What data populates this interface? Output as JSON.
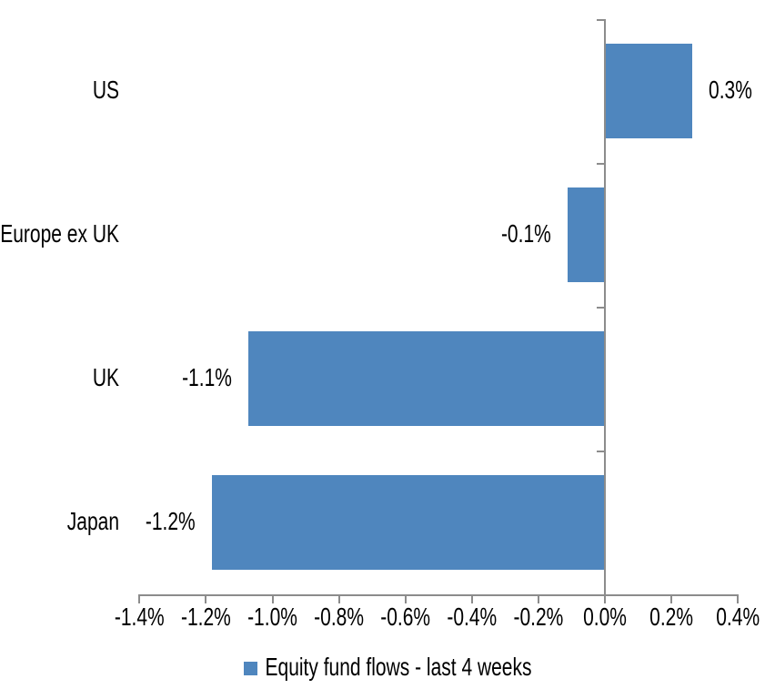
{
  "chart_data": {
    "type": "bar",
    "orientation": "horizontal",
    "title": "",
    "categories": [
      "US",
      "Europe ex UK",
      "UK",
      "Japan"
    ],
    "series": [
      {
        "name": "Equity fund flows - last 4 weeks",
        "values": [
          0.26,
          -0.11,
          -1.07,
          -1.18
        ],
        "data_labels": [
          "0.3%",
          "-0.1%",
          "-1.1%",
          "-1.2%"
        ]
      }
    ],
    "value_unit": "%",
    "xlim": [
      -1.4,
      0.4
    ],
    "x_tick_values": [
      -1.4,
      -1.2,
      -1.0,
      -0.8,
      -0.6,
      -0.4,
      -0.2,
      0.0,
      0.2,
      0.4
    ],
    "x_tick_labels": [
      "-1.4%",
      "-1.2%",
      "-1.0%",
      "-0.8%",
      "-0.6%",
      "-0.4%",
      "-0.2%",
      "0.0%",
      "0.2%",
      "0.4%"
    ],
    "grid": false,
    "legend_position": "bottom",
    "colors": {
      "bar": "#4F86BE",
      "axis": "#8C8C8C",
      "text": "#000000",
      "background": "#FFFFFF"
    }
  }
}
